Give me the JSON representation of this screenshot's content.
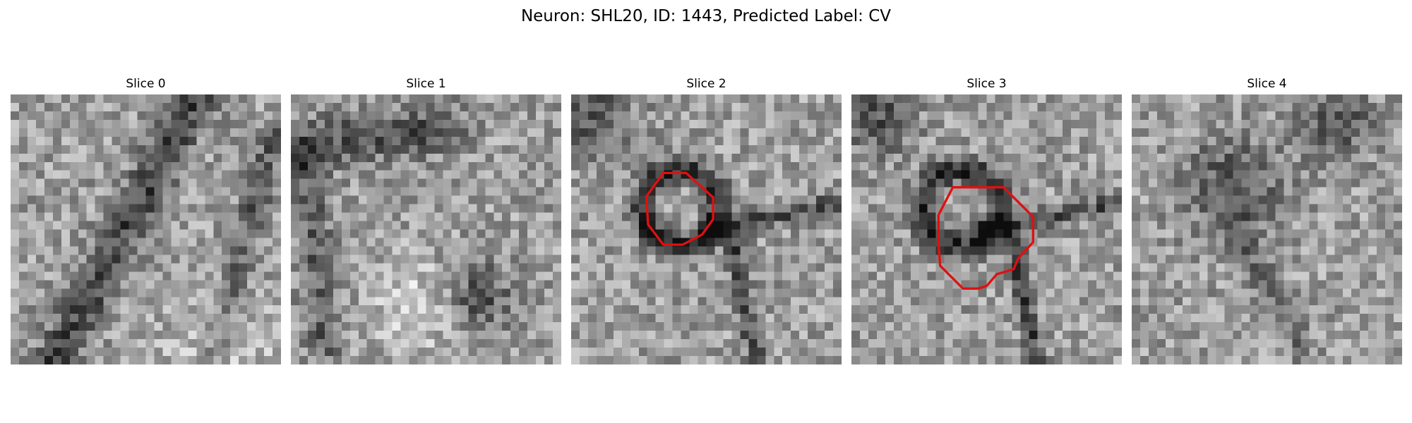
{
  "figure": {
    "title": "Neuron: SHL20, ID: 1443, Predicted Label: CV"
  },
  "panels": [
    {
      "title": "Slice 0",
      "seed": 11,
      "dark_feature": "diagonal-band",
      "roi_contour": false
    },
    {
      "title": "Slice 1",
      "seed": 23,
      "dark_feature": "mottled-dark",
      "roi_contour": false
    },
    {
      "title": "Slice 2",
      "seed": 37,
      "dark_feature": "ring-with-stem",
      "roi_contour": true
    },
    {
      "title": "Slice 3",
      "seed": 53,
      "dark_feature": "ring-with-stem",
      "roi_contour": true
    },
    {
      "title": "Slice 4",
      "seed": 71,
      "dark_feature": "faint-blob",
      "roi_contour": false
    }
  ],
  "contour_color": "#e01010",
  "colormap": "grayscale"
}
